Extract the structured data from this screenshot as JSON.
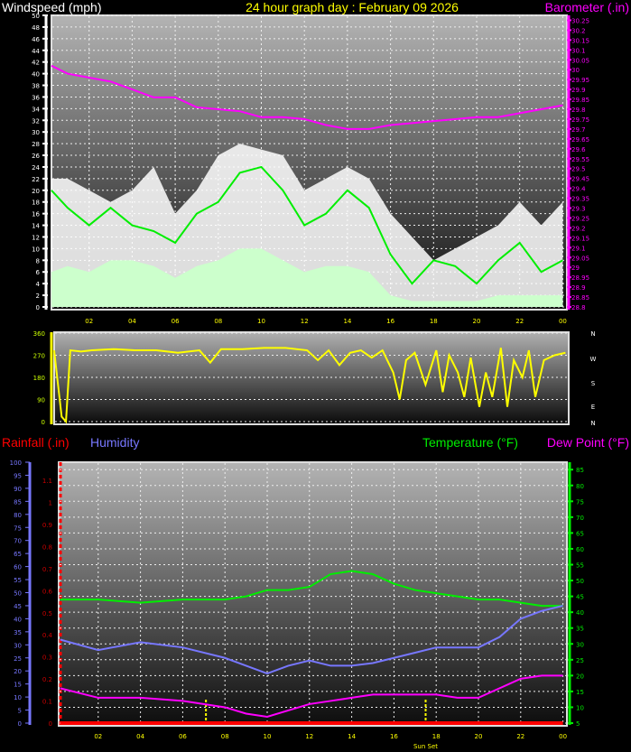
{
  "chart_data": [
    {
      "type": "line",
      "title": "24 hour graph day : February 09 2026",
      "left_axis_label": "Windspeed (mph)",
      "right_axis_label": "Barometer (.in)",
      "ylim_left": [
        0,
        50
      ],
      "ylim_right": [
        28.8,
        30.28
      ],
      "grid": true,
      "x_tick_labels": [
        "02",
        "04",
        "06",
        "08",
        "10",
        "12",
        "14",
        "16",
        "18",
        "20",
        "22",
        "00"
      ],
      "x_hours": [
        0.25,
        1,
        2,
        3,
        4,
        5,
        6,
        7,
        8,
        9,
        10,
        11,
        12,
        13,
        14,
        15,
        16,
        17,
        18,
        19,
        20,
        21,
        22,
        23,
        24
      ],
      "series": [
        {
          "key": "gust",
          "color": "#ffffff",
          "values": [
            22,
            22,
            20,
            18,
            20,
            24,
            16,
            20,
            26,
            28,
            27,
            26,
            20,
            22,
            24,
            22,
            16,
            12,
            8,
            10,
            12,
            14,
            18,
            14,
            18
          ]
        },
        {
          "key": "wind",
          "color": "#ccffcc",
          "values": [
            6,
            7,
            6,
            8,
            8,
            7,
            5,
            7,
            8,
            10,
            10,
            8,
            6,
            7,
            7,
            6,
            2,
            1,
            1,
            1,
            1,
            2,
            2,
            2,
            2
          ]
        },
        {
          "key": "average",
          "color": "#00ee00",
          "values": [
            20,
            17,
            14,
            17,
            14,
            13,
            11,
            16,
            18,
            23,
            24,
            20,
            14,
            16,
            20,
            17,
            9,
            4,
            8,
            7,
            4,
            8,
            11,
            6,
            8
          ]
        },
        {
          "key": "barometer",
          "color": "#ff00ff",
          "axis": "right",
          "values": [
            30.02,
            29.98,
            29.96,
            29.94,
            29.9,
            29.86,
            29.86,
            29.81,
            29.8,
            29.79,
            29.76,
            29.76,
            29.75,
            29.72,
            29.7,
            29.7,
            29.72,
            29.73,
            29.74,
            29.75,
            29.76,
            29.76,
            29.78,
            29.8,
            29.82
          ]
        }
      ]
    },
    {
      "type": "line",
      "ylim": [
        0,
        360
      ],
      "y_tick_labels": [
        "360",
        "270",
        "180",
        "90",
        "0"
      ],
      "compass_labels": [
        "N",
        "W",
        "S",
        "E",
        "N"
      ],
      "grid": true,
      "series": [
        {
          "key": "wind_direction",
          "color": "#ffff00",
          "x_hours": [
            0.25,
            0.6,
            0.8,
            1,
            1.5,
            2,
            3,
            4,
            5,
            6,
            7,
            7.5,
            8,
            9,
            10,
            11,
            12,
            12.5,
            13,
            13.5,
            14,
            14.5,
            15,
            15.5,
            16,
            16.3,
            16.6,
            17,
            17.5,
            18,
            18.3,
            18.6,
            19,
            19.3,
            19.6,
            20,
            20.3,
            20.6,
            21,
            21.3,
            21.6,
            22,
            22.3,
            22.6,
            23,
            23.5,
            24
          ],
          "values": [
            290,
            20,
            0,
            290,
            285,
            290,
            295,
            290,
            290,
            280,
            290,
            240,
            295,
            295,
            300,
            300,
            290,
            250,
            290,
            230,
            280,
            290,
            260,
            290,
            200,
            90,
            250,
            280,
            150,
            290,
            120,
            270,
            200,
            100,
            260,
            60,
            200,
            100,
            300,
            60,
            250,
            180,
            290,
            100,
            250,
            270,
            280
          ]
        }
      ]
    },
    {
      "type": "line",
      "axis_labels": {
        "rainfall": "Rainfall (.in)",
        "humidity": "Humidity",
        "temperature": "Temperature (°F)",
        "dew_point": "Dew Point (°F)"
      },
      "ylim_humidity": [
        0,
        100
      ],
      "ylim_rainfall": [
        0,
        1.19
      ],
      "ylim_temperature": [
        5,
        87
      ],
      "grid": true,
      "x_tick_labels": [
        "02",
        "04",
        "06",
        "08",
        "10",
        "12",
        "14",
        "16",
        "18",
        "20",
        "22",
        "00"
      ],
      "annotation": "Sun Set",
      "sunrise_hour": 7.1,
      "sunset_hour": 17.5,
      "x_hours": [
        0.2,
        2,
        4,
        6,
        8,
        9,
        10,
        11,
        12,
        13,
        14,
        15,
        16,
        17,
        18,
        19,
        20,
        21,
        22,
        23,
        24
      ],
      "series": [
        {
          "key": "temperature",
          "color": "#00ee00",
          "axis": "temperature",
          "values": [
            44,
            44,
            43,
            44,
            44,
            45,
            47,
            47,
            48,
            52,
            53,
            52,
            49,
            47,
            46,
            45,
            44,
            44,
            43,
            42,
            42
          ]
        },
        {
          "key": "humidity",
          "color": "#7777ff",
          "axis": "humidity",
          "values": [
            32,
            28,
            31,
            29,
            25,
            22,
            19,
            22,
            24,
            22,
            22,
            23,
            25,
            27,
            29,
            29,
            29,
            33,
            40,
            43,
            45
          ]
        },
        {
          "key": "dew_point",
          "color": "#ff00ff",
          "axis": "temperature",
          "values": [
            16,
            13,
            13,
            12,
            10,
            8,
            7,
            9,
            11,
            12,
            13,
            14,
            14,
            14,
            14,
            13,
            13,
            16,
            19,
            20,
            20
          ]
        },
        {
          "key": "rainfall",
          "color": "#ff0000",
          "axis": "rainfall",
          "values": [
            0,
            0,
            0,
            0,
            0,
            0,
            0,
            0,
            0,
            0,
            0,
            0,
            0,
            0,
            0,
            0,
            0,
            0,
            0,
            0,
            0
          ]
        }
      ]
    }
  ]
}
